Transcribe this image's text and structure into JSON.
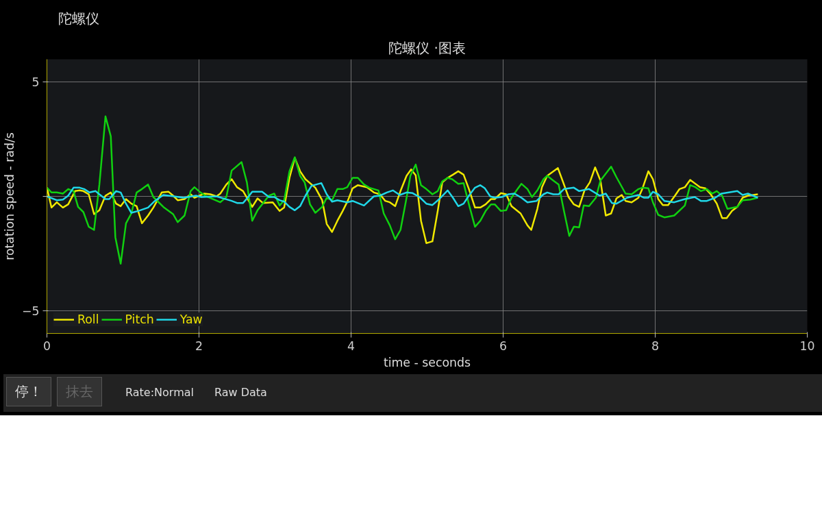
{
  "chart_data": {
    "type": "line",
    "title": "陀螺仪 ·图表",
    "xlabel": "time - seconds",
    "ylabel": "rotation speed - rad/s",
    "xlim": [
      0,
      10
    ],
    "xticks": [
      0,
      2,
      4,
      6,
      8,
      10
    ],
    "ylim": [
      -6,
      6
    ],
    "yticks": [
      -5,
      {
        "value": 0,
        "label": null
      },
      5
    ],
    "grid": true,
    "legend": "bottom left",
    "marker": "none",
    "line_style": "solid",
    "annotations": [
      "陀螺仪",
      "停！",
      "抹去",
      "Rate:Normal",
      "Raw Data"
    ],
    "series": [
      {
        "name": "Roll",
        "color": "#f0e800",
        "x": [
          0,
          0.06,
          0.13,
          0.21,
          0.28,
          0.37,
          0.43,
          0.48,
          0.55,
          0.62,
          0.69,
          0.77,
          0.84,
          0.91,
          0.97,
          1.04,
          1.11,
          1.18,
          1.25,
          1.33,
          1.4,
          1.51,
          1.6,
          1.66,
          1.72,
          1.81,
          1.89,
          1.94,
          2.07,
          2.15,
          2.23,
          2.28,
          2.36,
          2.43,
          2.5,
          2.58,
          2.7,
          2.77,
          2.84,
          2.97,
          3.06,
          3.12,
          3.19,
          3.26,
          3.33,
          3.4,
          3.53,
          3.62,
          3.68,
          3.75,
          3.82,
          3.89,
          3.96,
          4.02,
          4.09,
          4.21,
          4.3,
          4.38,
          4.45,
          4.51,
          4.58,
          4.65,
          4.73,
          4.79,
          4.85,
          4.92,
          4.99,
          5.07,
          5.14,
          5.2,
          5.27,
          5.34,
          5.41,
          5.48,
          5.55,
          5.63,
          5.7,
          5.77,
          5.84,
          5.89,
          5.97,
          6.04,
          6.11,
          6.23,
          6.32,
          6.37,
          6.45,
          6.51,
          6.58,
          6.72,
          6.79,
          6.86,
          6.93,
          7.0,
          7.07,
          7.14,
          7.21,
          7.28,
          7.35,
          7.42,
          7.49,
          7.56,
          7.61,
          7.69,
          7.78,
          7.83,
          7.91,
          7.97,
          8.04,
          8.1,
          8.17,
          8.26,
          8.32,
          8.39,
          8.46,
          8.59,
          8.66,
          8.73,
          8.81,
          8.88,
          8.94,
          9.01,
          9.08,
          9.15,
          9.22,
          9.35
        ],
        "values": [
          0.38,
          -0.49,
          -0.26,
          -0.49,
          -0.35,
          0.23,
          0.26,
          0.23,
          0.09,
          -0.78,
          -0.61,
          0.03,
          0.17,
          -0.32,
          -0.43,
          -0.12,
          -0.32,
          -0.43,
          -1.18,
          -0.84,
          -0.49,
          0.17,
          0.2,
          0.03,
          -0.17,
          -0.12,
          0.09,
          -0.06,
          0.12,
          0.09,
          0.0,
          0.12,
          0.52,
          0.75,
          0.4,
          0.23,
          -0.46,
          -0.09,
          -0.29,
          -0.26,
          -0.64,
          -0.49,
          0.81,
          1.68,
          1.1,
          0.75,
          0.38,
          -0.17,
          -1.21,
          -1.56,
          -1.07,
          -0.64,
          -0.17,
          0.35,
          0.49,
          0.4,
          0.17,
          0.09,
          -0.2,
          -0.26,
          -0.43,
          0.23,
          0.9,
          1.18,
          0.92,
          -1.07,
          -2.05,
          -1.97,
          -0.64,
          0.61,
          0.81,
          0.95,
          1.1,
          0.95,
          0.32,
          -0.49,
          -0.49,
          -0.35,
          -0.12,
          -0.12,
          0.14,
          0.09,
          -0.43,
          -0.75,
          -1.27,
          -1.47,
          -0.55,
          0.4,
          0.9,
          1.24,
          0.61,
          -0.03,
          -0.35,
          -0.46,
          0.26,
          0.61,
          1.27,
          0.69,
          -0.84,
          -0.75,
          -0.09,
          0.06,
          -0.2,
          -0.26,
          -0.06,
          0.32,
          1.1,
          0.75,
          -0.12,
          -0.38,
          -0.38,
          0.03,
          0.32,
          0.4,
          0.72,
          0.4,
          0.35,
          0.09,
          -0.32,
          -0.95,
          -0.95,
          -0.64,
          -0.46,
          -0.06,
          0.03,
          0.09
        ]
      },
      {
        "name": "Pitch",
        "color": "#10d010",
        "x": [
          0,
          0.06,
          0.13,
          0.21,
          0.28,
          0.35,
          0.41,
          0.48,
          0.55,
          0.62,
          0.69,
          0.77,
          0.84,
          0.9,
          0.97,
          1.04,
          1.11,
          1.18,
          1.25,
          1.33,
          1.4,
          1.54,
          1.66,
          1.72,
          1.81,
          1.89,
          1.94,
          2.02,
          2.08,
          2.28,
          2.36,
          2.43,
          2.56,
          2.63,
          2.7,
          2.77,
          2.92,
          2.99,
          3.06,
          3.12,
          3.19,
          3.26,
          3.33,
          3.39,
          3.46,
          3.53,
          3.62,
          3.68,
          3.75,
          3.82,
          3.89,
          3.95,
          4.02,
          4.09,
          4.17,
          4.24,
          4.36,
          4.43,
          4.51,
          4.58,
          4.65,
          4.73,
          4.78,
          4.85,
          4.92,
          4.99,
          5.07,
          5.14,
          5.2,
          5.27,
          5.33,
          5.41,
          5.48,
          5.55,
          5.63,
          5.7,
          5.77,
          5.84,
          5.89,
          5.97,
          6.04,
          6.11,
          6.19,
          6.24,
          6.32,
          6.38,
          6.45,
          6.53,
          6.58,
          6.66,
          6.73,
          6.8,
          6.87,
          6.93,
          7.0,
          7.06,
          7.13,
          7.22,
          7.28,
          7.42,
          7.49,
          7.61,
          7.69,
          7.78,
          7.83,
          7.91,
          7.97,
          8.04,
          8.12,
          8.25,
          8.39,
          8.46,
          8.53,
          8.6,
          8.68,
          8.75,
          8.81,
          8.88,
          8.95,
          9.08,
          9.15,
          9.25,
          9.35
        ],
        "values": [
          0.38,
          0.17,
          0.17,
          0.12,
          0.32,
          0.23,
          -0.46,
          -0.69,
          -1.33,
          -1.47,
          0.52,
          3.5,
          2.63,
          -1.79,
          -2.95,
          -1.18,
          -0.75,
          0.17,
          0.32,
          0.52,
          -0.03,
          -0.49,
          -0.78,
          -1.13,
          -0.84,
          0.23,
          0.4,
          0.17,
          0.03,
          -0.26,
          -0.03,
          1.13,
          1.5,
          0.61,
          -1.07,
          -0.61,
          0.03,
          0.12,
          -0.4,
          -0.17,
          1.1,
          1.71,
          0.9,
          0.61,
          -0.35,
          -0.72,
          -0.46,
          -0.06,
          -0.17,
          0.32,
          0.32,
          0.4,
          0.81,
          0.81,
          0.52,
          0.38,
          0.26,
          -0.75,
          -1.27,
          -1.88,
          -1.47,
          -0.06,
          0.9,
          1.39,
          0.49,
          0.32,
          0.09,
          0.23,
          0.66,
          0.81,
          0.75,
          0.55,
          0.58,
          -0.35,
          -1.33,
          -1.07,
          -0.64,
          -0.35,
          -0.35,
          -0.64,
          -0.61,
          -0.06,
          0.32,
          0.55,
          0.32,
          -0.03,
          0.26,
          0.75,
          0.9,
          0.69,
          0.52,
          -0.64,
          -1.73,
          -1.33,
          -1.36,
          -0.4,
          -0.43,
          -0.06,
          0.69,
          1.3,
          0.84,
          0.12,
          0.09,
          0.32,
          0.38,
          0.35,
          -0.26,
          -0.81,
          -0.92,
          -0.84,
          -0.4,
          0.49,
          0.4,
          0.23,
          0.32,
          0.12,
          0.23,
          0.03,
          -0.55,
          -0.46,
          -0.17,
          -0.14,
          -0.06
        ]
      },
      {
        "name": "Yaw",
        "color": "#20d8e8",
        "x": [
          0,
          0.13,
          0.21,
          0.28,
          0.35,
          0.43,
          0.49,
          0.56,
          0.64,
          0.69,
          0.77,
          0.82,
          0.91,
          0.97,
          1.04,
          1.11,
          1.2,
          1.33,
          1.42,
          1.53,
          1.6,
          1.8,
          1.96,
          2.03,
          2.23,
          2.43,
          2.5,
          2.58,
          2.64,
          2.7,
          2.83,
          2.92,
          2.99,
          3.06,
          3.12,
          3.19,
          3.26,
          3.33,
          3.4,
          3.48,
          3.61,
          3.68,
          3.75,
          3.82,
          3.95,
          4.02,
          4.17,
          4.3,
          4.38,
          4.47,
          4.55,
          4.64,
          4.73,
          4.81,
          4.9,
          4.99,
          5.07,
          5.16,
          5.27,
          5.34,
          5.41,
          5.48,
          5.55,
          5.63,
          5.7,
          5.76,
          5.83,
          5.89,
          5.98,
          6.07,
          6.15,
          6.24,
          6.32,
          6.44,
          6.53,
          6.58,
          6.66,
          6.73,
          6.8,
          6.93,
          7.0,
          7.13,
          7.27,
          7.35,
          7.43,
          7.49,
          7.63,
          7.78,
          7.85,
          7.91,
          7.97,
          8.04,
          8.12,
          8.25,
          8.39,
          8.52,
          8.6,
          8.68,
          8.79,
          8.87,
          9.08,
          9.15,
          9.22,
          9.35
        ],
        "values": [
          0,
          -0.17,
          -0.14,
          0.03,
          0.38,
          0.38,
          0.32,
          0.17,
          0.23,
          0.09,
          -0.12,
          -0.12,
          0.23,
          0.17,
          -0.32,
          -0.72,
          -0.64,
          -0.49,
          -0.2,
          0.06,
          0.03,
          -0.06,
          0.03,
          -0.03,
          0.0,
          -0.2,
          -0.29,
          -0.29,
          -0.06,
          0.2,
          0.2,
          -0.03,
          -0.03,
          -0.17,
          -0.23,
          -0.46,
          -0.61,
          -0.43,
          0.03,
          0.46,
          0.58,
          0.09,
          -0.23,
          -0.17,
          -0.26,
          -0.2,
          -0.4,
          0.0,
          0.03,
          0.17,
          0.26,
          0.06,
          0.17,
          0.14,
          -0.03,
          -0.32,
          -0.38,
          -0.12,
          0.26,
          -0.06,
          -0.43,
          -0.32,
          0.03,
          0.38,
          0.49,
          0.35,
          0.0,
          -0.06,
          -0.03,
          0.09,
          0.12,
          -0.06,
          -0.26,
          -0.2,
          0.09,
          0.17,
          0.09,
          0.09,
          0.32,
          0.38,
          0.23,
          0.32,
          0.03,
          0.12,
          -0.29,
          -0.32,
          -0.06,
          0.06,
          -0.06,
          -0.06,
          0.2,
          0.09,
          -0.2,
          -0.26,
          -0.12,
          -0.03,
          -0.2,
          -0.2,
          -0.06,
          0.12,
          0.23,
          0.06,
          0.12,
          -0.06
        ]
      }
    ]
  }
}
